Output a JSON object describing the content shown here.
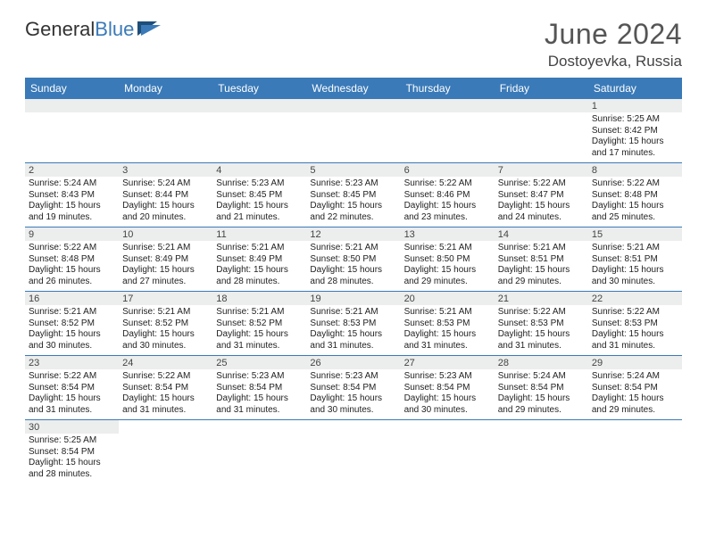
{
  "brand": {
    "name_a": "General",
    "name_b": "Blue"
  },
  "title": {
    "month": "June 2024",
    "location": "Dostoyevka, Russia"
  },
  "colors": {
    "header_bg": "#3a7ab8",
    "daynum_bg": "#eceded",
    "text": "#222222"
  },
  "dayNames": [
    "Sunday",
    "Monday",
    "Tuesday",
    "Wednesday",
    "Thursday",
    "Friday",
    "Saturday"
  ],
  "firstWeekday": 6,
  "daysInMonth": 30,
  "days": {
    "1": {
      "sunrise": "5:25 AM",
      "sunset": "8:42 PM",
      "daylight": "15 hours and 17 minutes."
    },
    "2": {
      "sunrise": "5:24 AM",
      "sunset": "8:43 PM",
      "daylight": "15 hours and 19 minutes."
    },
    "3": {
      "sunrise": "5:24 AM",
      "sunset": "8:44 PM",
      "daylight": "15 hours and 20 minutes."
    },
    "4": {
      "sunrise": "5:23 AM",
      "sunset": "8:45 PM",
      "daylight": "15 hours and 21 minutes."
    },
    "5": {
      "sunrise": "5:23 AM",
      "sunset": "8:45 PM",
      "daylight": "15 hours and 22 minutes."
    },
    "6": {
      "sunrise": "5:22 AM",
      "sunset": "8:46 PM",
      "daylight": "15 hours and 23 minutes."
    },
    "7": {
      "sunrise": "5:22 AM",
      "sunset": "8:47 PM",
      "daylight": "15 hours and 24 minutes."
    },
    "8": {
      "sunrise": "5:22 AM",
      "sunset": "8:48 PM",
      "daylight": "15 hours and 25 minutes."
    },
    "9": {
      "sunrise": "5:22 AM",
      "sunset": "8:48 PM",
      "daylight": "15 hours and 26 minutes."
    },
    "10": {
      "sunrise": "5:21 AM",
      "sunset": "8:49 PM",
      "daylight": "15 hours and 27 minutes."
    },
    "11": {
      "sunrise": "5:21 AM",
      "sunset": "8:49 PM",
      "daylight": "15 hours and 28 minutes."
    },
    "12": {
      "sunrise": "5:21 AM",
      "sunset": "8:50 PM",
      "daylight": "15 hours and 28 minutes."
    },
    "13": {
      "sunrise": "5:21 AM",
      "sunset": "8:50 PM",
      "daylight": "15 hours and 29 minutes."
    },
    "14": {
      "sunrise": "5:21 AM",
      "sunset": "8:51 PM",
      "daylight": "15 hours and 29 minutes."
    },
    "15": {
      "sunrise": "5:21 AM",
      "sunset": "8:51 PM",
      "daylight": "15 hours and 30 minutes."
    },
    "16": {
      "sunrise": "5:21 AM",
      "sunset": "8:52 PM",
      "daylight": "15 hours and 30 minutes."
    },
    "17": {
      "sunrise": "5:21 AM",
      "sunset": "8:52 PM",
      "daylight": "15 hours and 30 minutes."
    },
    "18": {
      "sunrise": "5:21 AM",
      "sunset": "8:52 PM",
      "daylight": "15 hours and 31 minutes."
    },
    "19": {
      "sunrise": "5:21 AM",
      "sunset": "8:53 PM",
      "daylight": "15 hours and 31 minutes."
    },
    "20": {
      "sunrise": "5:21 AM",
      "sunset": "8:53 PM",
      "daylight": "15 hours and 31 minutes."
    },
    "21": {
      "sunrise": "5:22 AM",
      "sunset": "8:53 PM",
      "daylight": "15 hours and 31 minutes."
    },
    "22": {
      "sunrise": "5:22 AM",
      "sunset": "8:53 PM",
      "daylight": "15 hours and 31 minutes."
    },
    "23": {
      "sunrise": "5:22 AM",
      "sunset": "8:54 PM",
      "daylight": "15 hours and 31 minutes."
    },
    "24": {
      "sunrise": "5:22 AM",
      "sunset": "8:54 PM",
      "daylight": "15 hours and 31 minutes."
    },
    "25": {
      "sunrise": "5:23 AM",
      "sunset": "8:54 PM",
      "daylight": "15 hours and 31 minutes."
    },
    "26": {
      "sunrise": "5:23 AM",
      "sunset": "8:54 PM",
      "daylight": "15 hours and 30 minutes."
    },
    "27": {
      "sunrise": "5:23 AM",
      "sunset": "8:54 PM",
      "daylight": "15 hours and 30 minutes."
    },
    "28": {
      "sunrise": "5:24 AM",
      "sunset": "8:54 PM",
      "daylight": "15 hours and 29 minutes."
    },
    "29": {
      "sunrise": "5:24 AM",
      "sunset": "8:54 PM",
      "daylight": "15 hours and 29 minutes."
    },
    "30": {
      "sunrise": "5:25 AM",
      "sunset": "8:54 PM",
      "daylight": "15 hours and 28 minutes."
    }
  },
  "labels": {
    "sunrise": "Sunrise:",
    "sunset": "Sunset:",
    "daylight": "Daylight:"
  }
}
